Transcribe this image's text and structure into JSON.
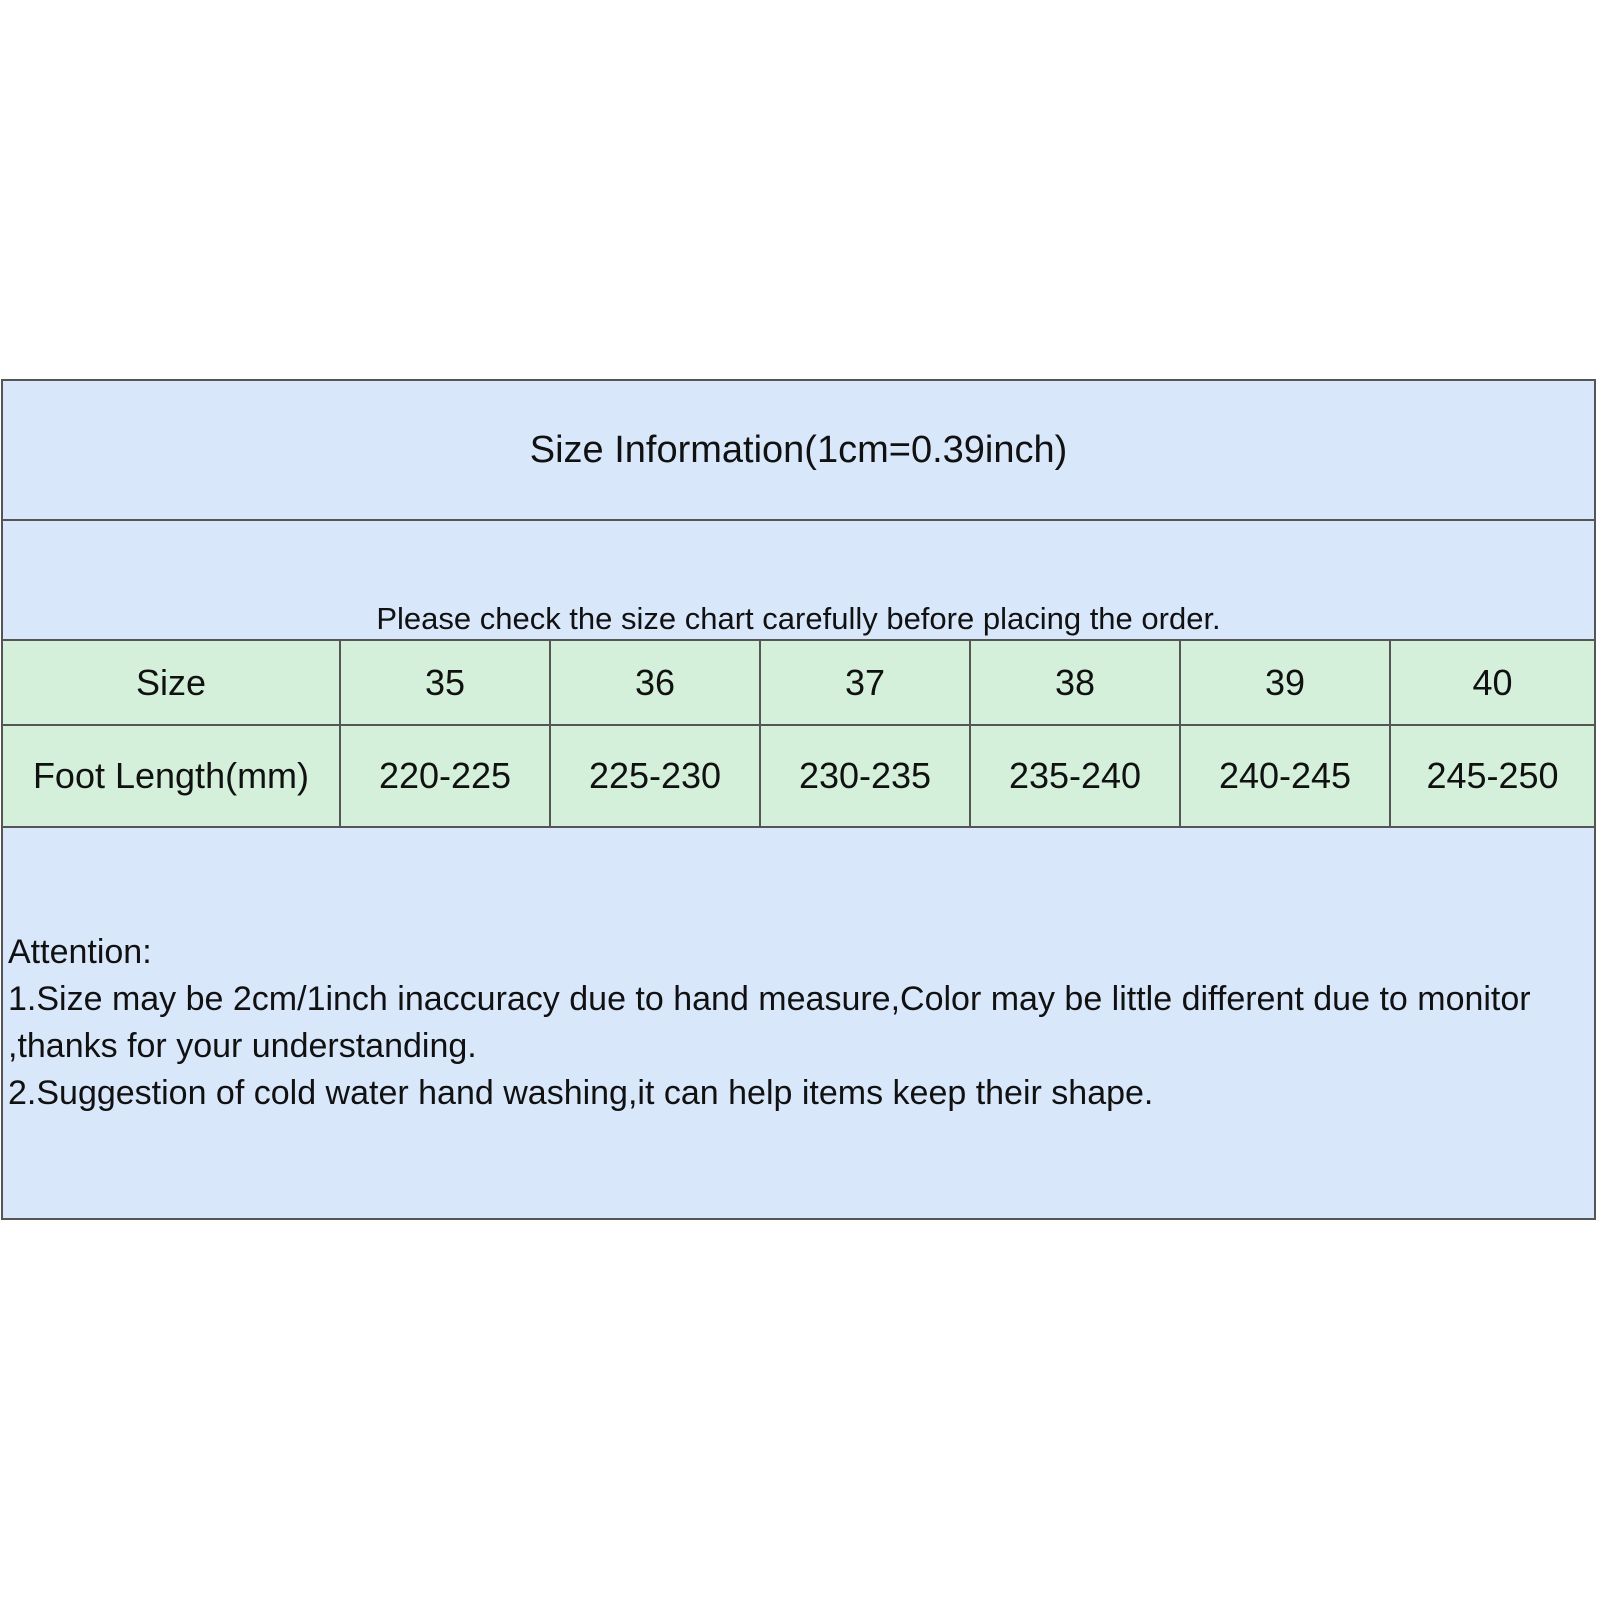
{
  "title": "Size Information(1cm=0.39inch)",
  "subtitle": "Please check the size chart carefully before placing the order.",
  "table": {
    "size_label": "Size",
    "sizes": [
      "35",
      "36",
      "37",
      "38",
      "39",
      "40"
    ],
    "length_label": "Foot Length(mm)",
    "lengths": [
      "220-225",
      "225-230",
      "230-235",
      "235-240",
      "240-245",
      "245-250"
    ]
  },
  "notes": {
    "heading": "Attention:",
    "lines": [
      "1.Size may be 2cm/1inch inaccuracy due to hand measure,Color may be little different due to monitor ,thanks for your understanding.",
      "2.Suggestion of cold water hand washing,it can help items keep their shape."
    ]
  },
  "colors": {
    "header_bg": "#d9e7fb",
    "table_bg": "#d4f0db",
    "border": "#555555"
  }
}
